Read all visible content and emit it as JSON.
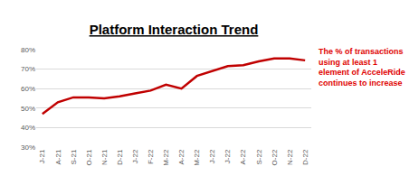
{
  "chart_data": {
    "type": "line",
    "title": "Platform Interaction Trend",
    "categories": [
      "J-21",
      "A-21",
      "S-21",
      "O-21",
      "N-21",
      "D-21",
      "J-22",
      "F-22",
      "M-22",
      "A-22",
      "M-22",
      "J-22",
      "J-22",
      "A-22",
      "S-22",
      "O-22",
      "N-22",
      "D-22"
    ],
    "values": [
      47,
      53,
      55.5,
      55.5,
      55,
      56,
      57.5,
      59,
      62,
      60,
      66.5,
      69,
      71.5,
      72,
      74,
      75.5,
      75.5,
      74.5
    ],
    "color": "#c00000",
    "ylim": [
      30,
      80
    ],
    "yticks": [
      {
        "value": 30,
        "label": "30%"
      },
      {
        "value": 40,
        "label": "40%"
      },
      {
        "value": 50,
        "label": "50%"
      },
      {
        "value": 60,
        "label": "60%"
      },
      {
        "value": 70,
        "label": "70%"
      },
      {
        "value": 80,
        "label": "80%"
      }
    ],
    "grid": true,
    "annotations": [
      "The % of transactions\nusing at least 1\nelement of AcceleRide\ncontinues to increase"
    ]
  }
}
